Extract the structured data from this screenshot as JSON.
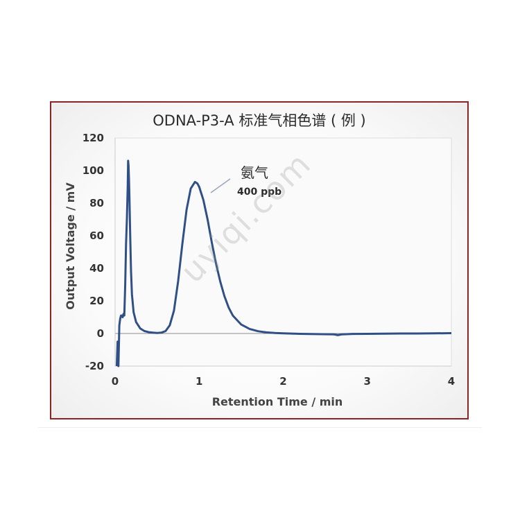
{
  "chart_data": {
    "type": "line",
    "title": "ODNA-P3-A 标准气相色谱 ( 例 )",
    "xlabel": "Retention Time / min",
    "ylabel": "Output Voltage / mV",
    "xlim": [
      0,
      4
    ],
    "ylim": [
      -20,
      120
    ],
    "xticks": [
      "0",
      "1",
      "2",
      "3",
      "4"
    ],
    "yticks": [
      "120",
      "100",
      "80",
      "60",
      "40",
      "20",
      "0",
      "-20"
    ],
    "grid": false,
    "baseline": 0,
    "series": [
      {
        "color": "#2f4f86",
        "x": [
          0.02,
          0.03,
          0.04,
          0.05,
          0.06,
          0.07,
          0.08,
          0.09,
          0.1,
          0.11,
          0.12,
          0.13,
          0.14,
          0.15,
          0.155,
          0.16,
          0.165,
          0.17,
          0.18,
          0.19,
          0.2,
          0.22,
          0.25,
          0.3,
          0.35,
          0.4,
          0.45,
          0.5,
          0.55,
          0.6,
          0.65,
          0.7,
          0.75,
          0.8,
          0.85,
          0.9,
          0.95,
          0.98,
          1.0,
          1.05,
          1.1,
          1.15,
          1.2,
          1.25,
          1.3,
          1.35,
          1.4,
          1.5,
          1.6,
          1.7,
          1.8,
          1.9,
          2.0,
          2.2,
          2.4,
          2.6,
          2.65,
          2.7,
          2.8,
          3.0,
          3.2,
          3.4,
          3.6,
          3.8,
          4.0
        ],
        "values": [
          -20,
          -5,
          -20,
          5,
          9,
          11,
          11,
          10,
          12,
          11,
          30,
          55,
          70,
          90,
          106,
          103,
          95,
          85,
          60,
          38,
          24,
          13,
          7,
          3,
          1.5,
          0.8,
          0.5,
          0.3,
          0.5,
          1.5,
          5,
          14,
          32,
          55,
          76,
          89,
          93,
          92,
          90,
          82,
          70,
          56,
          43,
          32,
          23,
          16,
          11,
          5.5,
          2.8,
          1.4,
          0.7,
          0.3,
          0.1,
          -0.2,
          -0.4,
          -0.5,
          -1,
          -0.5,
          -0.3,
          -0.2,
          -0.1,
          0,
          0,
          0.1,
          0.2
        ]
      }
    ],
    "annotations": {
      "compound": "氨气",
      "concentration": "400 ppb"
    },
    "watermark": "uyiqi.com"
  }
}
